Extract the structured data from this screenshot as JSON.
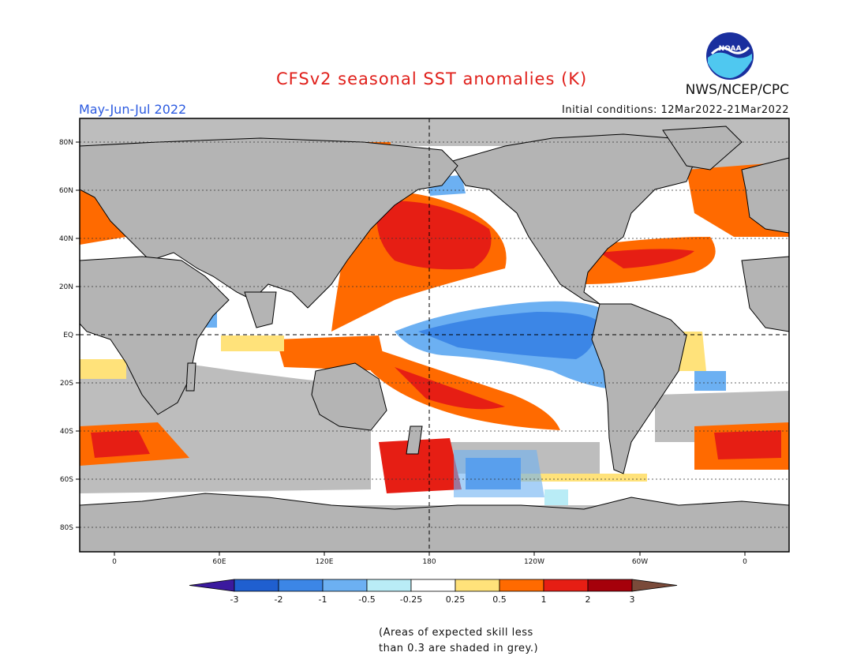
{
  "header": {
    "title": "CFSv2 seasonal SST anomalies (K)",
    "season": "May-Jun-Jul 2022",
    "initial_conditions": "Initial conditions: 12Mar2022-21Mar2022",
    "agency": "NWS/NCEP/CPC",
    "logo_text": "NOAA"
  },
  "map": {
    "lat_ticks": [
      "80N",
      "60N",
      "40N",
      "20N",
      "EQ",
      "20S",
      "40S",
      "60S",
      "80S"
    ],
    "lon_ticks": [
      "0",
      "60E",
      "120E",
      "180",
      "120W",
      "60W",
      "0"
    ],
    "colors": {
      "land": "#b4b4b4",
      "low_skill": "#bdbdbd",
      "ocean_neutral": "#ffffff",
      "coast": "#000000"
    }
  },
  "colorbar": {
    "labels": [
      "-3",
      "-2",
      "-1",
      "-0.5",
      "-0.25",
      "0.25",
      "0.5",
      "1",
      "2",
      "3"
    ],
    "colors": [
      "#3b1a9e",
      "#1f5fd0",
      "#3c86e6",
      "#6cb0f2",
      "#b9ecf6",
      "#ffffff",
      "#ffe27a",
      "#ff6a00",
      "#e61e14",
      "#a5000a",
      "#7a4a3a"
    ]
  },
  "footnote": {
    "line1": "(Areas of expected skill less",
    "line2": "than 0.3 are shaded in grey.)"
  }
}
